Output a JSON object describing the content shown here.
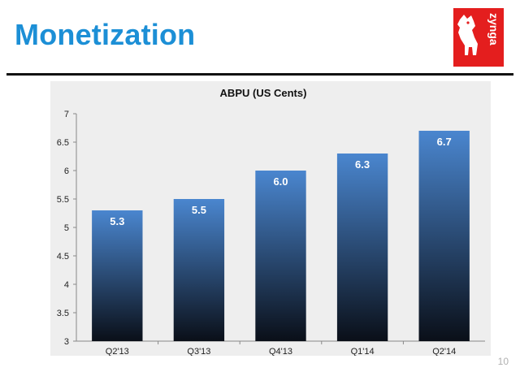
{
  "slide": {
    "title": "Monetization",
    "page_number": "10"
  },
  "logo": {
    "text": "zynga",
    "color": "#e41e1e"
  },
  "colors": {
    "title": "#1c8fd6",
    "bar_top": "#4a86cf",
    "bar_bottom": "#0a0f18",
    "panel": "#eeeeee"
  },
  "chart_data": {
    "type": "bar",
    "title": "ABPU (US Cents)",
    "categories": [
      "Q2'13",
      "Q3'13",
      "Q4'13",
      "Q1'14",
      "Q2'14"
    ],
    "values": [
      5.3,
      5.5,
      6.0,
      6.3,
      6.7
    ],
    "value_labels": [
      "5.3",
      "5.5",
      "6.0",
      "6.3",
      "6.7"
    ],
    "ylim": [
      3,
      7
    ],
    "yticks": [
      3,
      3.5,
      4,
      4.5,
      5,
      5.5,
      6,
      6.5,
      7
    ],
    "ytick_labels": [
      "3",
      "3.5",
      "4",
      "4.5",
      "5",
      "5.5",
      "6",
      "6.5",
      "7"
    ],
    "xlabel": "",
    "ylabel": "",
    "grid": false,
    "legend": false
  }
}
